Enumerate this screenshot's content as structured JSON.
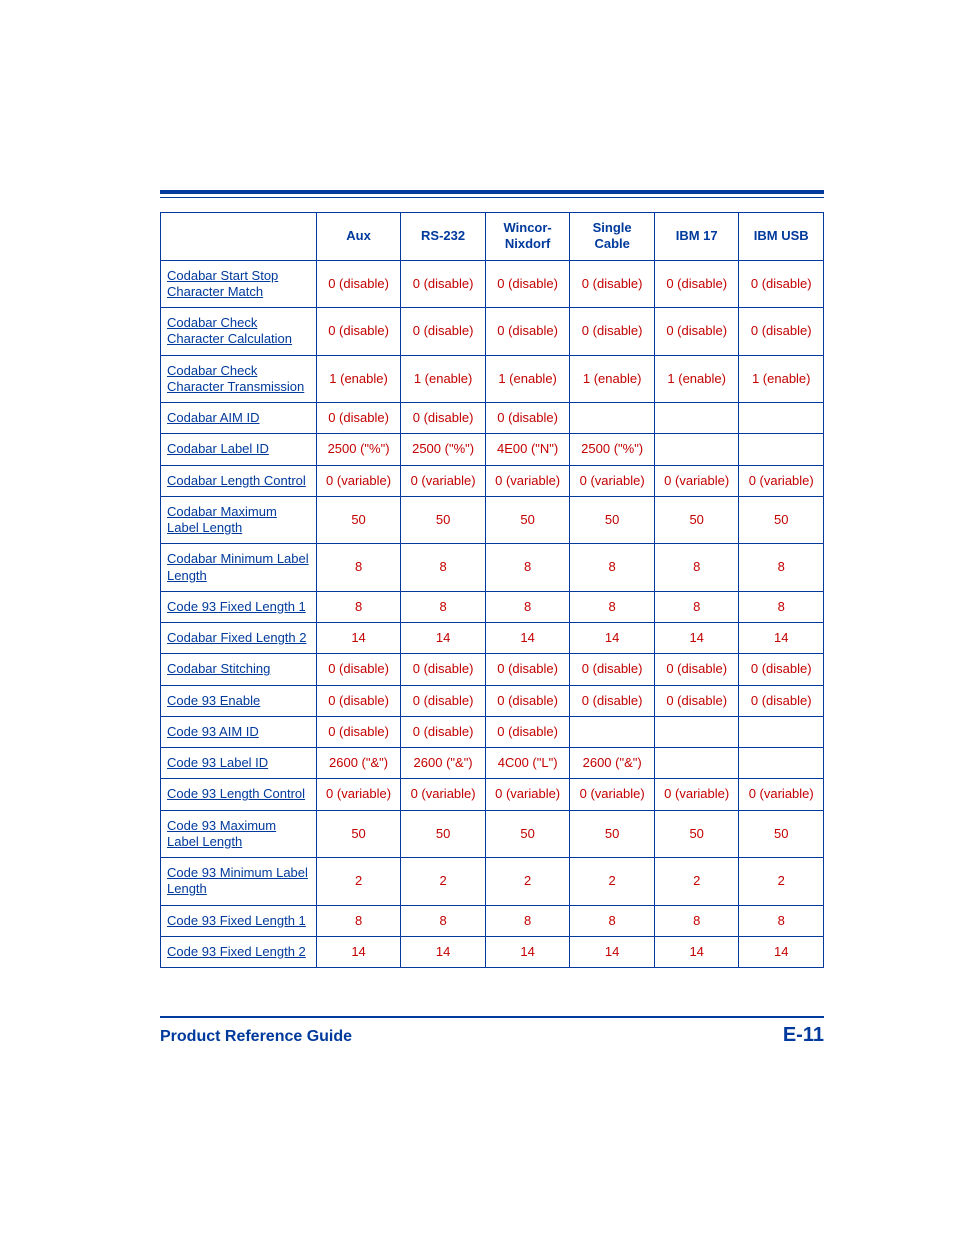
{
  "colors": {
    "rule": "#003a9c",
    "header_text": "#003a9c",
    "link_text": "#003a9c",
    "value_text": "#c40000",
    "background": "#ffffff"
  },
  "table": {
    "columns": [
      "",
      "Aux",
      "RS-232",
      "Wincor-Nixdorf",
      "Single Cable",
      "IBM 17",
      "IBM USB"
    ],
    "rows": [
      {
        "label": "Codabar Start Stop Character Match",
        "values": [
          "0 (disable)",
          "0 (disable)",
          "0 (disable)",
          "0 (disable)",
          "0 (disable)",
          "0 (disable)"
        ]
      },
      {
        "label": "Codabar Check Character Calculation",
        "values": [
          "0 (disable)",
          "0 (disable)",
          "0 (disable)",
          "0 (disable)",
          "0 (disable)",
          "0 (disable)"
        ]
      },
      {
        "label": "Codabar Check Character Transmission",
        "values": [
          "1 (enable)",
          "1 (enable)",
          "1 (enable)",
          "1 (enable)",
          "1 (enable)",
          "1 (enable)"
        ]
      },
      {
        "label": "Codabar AIM ID",
        "values": [
          "0 (disable)",
          "0 (disable)",
          "0 (disable)",
          "",
          "",
          ""
        ]
      },
      {
        "label": "Codabar Label ID",
        "values": [
          "2500 (\"%\")",
          "2500 (\"%\")",
          "4E00 (\"N\")",
          "2500 (\"%\")",
          "",
          ""
        ]
      },
      {
        "label": "Codabar Length Control",
        "values": [
          "0 (variable)",
          "0 (variable)",
          "0 (variable)",
          "0 (variable)",
          "0 (variable)",
          "0 (variable)"
        ]
      },
      {
        "label": "Codabar Maximum Label Length",
        "values": [
          "50",
          "50",
          "50",
          "50",
          "50",
          "50"
        ]
      },
      {
        "label": "Codabar Minimum Label Length",
        "values": [
          "8",
          "8",
          "8",
          "8",
          "8",
          "8"
        ]
      },
      {
        "label": "Code 93 Fixed Length 1",
        "values": [
          "8",
          "8",
          "8",
          "8",
          "8",
          "8"
        ]
      },
      {
        "label": "Codabar Fixed Length 2",
        "values": [
          "14",
          "14",
          "14",
          "14",
          "14",
          "14"
        ]
      },
      {
        "label": "Codabar Stitching",
        "values": [
          "0 (disable)",
          "0 (disable)",
          "0 (disable)",
          "0 (disable)",
          "0 (disable)",
          "0 (disable)"
        ]
      },
      {
        "label": "Code 93 Enable",
        "values": [
          "0 (disable)",
          "0 (disable)",
          "0 (disable)",
          "0 (disable)",
          "0 (disable)",
          "0 (disable)"
        ]
      },
      {
        "label": "Code 93 AIM ID",
        "values": [
          "0 (disable)",
          "0 (disable)",
          "0 (disable)",
          "",
          "",
          ""
        ]
      },
      {
        "label": "Code 93 Label ID",
        "values": [
          "2600 (\"&\")",
          "2600 (\"&\")",
          "4C00 (\"L\")",
          "2600 (\"&\")",
          "",
          ""
        ]
      },
      {
        "label": "Code 93 Length Control",
        "values": [
          "0 (variable)",
          "0 (variable)",
          "0 (variable)",
          "0 (variable)",
          "0 (variable)",
          "0 (variable)"
        ]
      },
      {
        "label": "Code 93 Maximum Label Length",
        "values": [
          "50",
          "50",
          "50",
          "50",
          "50",
          "50"
        ]
      },
      {
        "label": "Code 93 Minimum Label Length",
        "values": [
          "2",
          "2",
          "2",
          "2",
          "2",
          "2"
        ]
      },
      {
        "label": "Code 93 Fixed Length 1",
        "values": [
          "8",
          "8",
          "8",
          "8",
          "8",
          "8"
        ]
      },
      {
        "label": "Code 93 Fixed Length 2",
        "values": [
          "14",
          "14",
          "14",
          "14",
          "14",
          "14"
        ]
      }
    ]
  },
  "footer": {
    "left": "Product Reference Guide",
    "right": "E-11"
  }
}
